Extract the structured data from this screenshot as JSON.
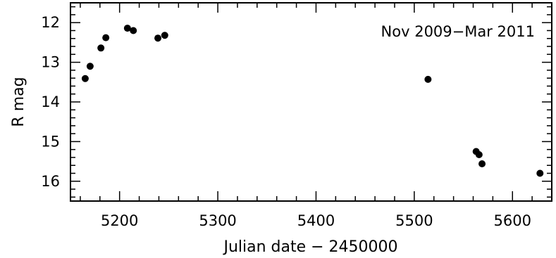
{
  "chart_data": {
    "type": "scatter",
    "title": "",
    "annotation": "Nov 2009−Mar 2011",
    "xlabel": "Julian date − 2450000",
    "ylabel": "R mag",
    "xlim": [
      5150,
      5640
    ],
    "ylim": [
      11.5,
      16.5
    ],
    "y_inverted": true,
    "grid": false,
    "x_ticks": [
      5200,
      5300,
      5400,
      5500,
      5600
    ],
    "x_tick_labels": [
      "5200",
      "5300",
      "5400",
      "5500",
      "5600"
    ],
    "y_ticks": [
      12,
      13,
      14,
      15,
      16
    ],
    "y_tick_labels": [
      "12",
      "13",
      "14",
      "15",
      "16"
    ],
    "series": [
      {
        "color": "#000000",
        "points": [
          {
            "x": 5165,
            "y": 13.41
          },
          {
            "x": 5170,
            "y": 13.1
          },
          {
            "x": 5181,
            "y": 12.64
          },
          {
            "x": 5186,
            "y": 12.38
          },
          {
            "x": 5208,
            "y": 12.14
          },
          {
            "x": 5214,
            "y": 12.2
          },
          {
            "x": 5239,
            "y": 12.39
          },
          {
            "x": 5246,
            "y": 12.32
          },
          {
            "x": 5514,
            "y": 13.43
          },
          {
            "x": 5563,
            "y": 15.25
          },
          {
            "x": 5566,
            "y": 15.33
          },
          {
            "x": 5569,
            "y": 15.56
          },
          {
            "x": 5628,
            "y": 15.8
          }
        ]
      }
    ]
  }
}
